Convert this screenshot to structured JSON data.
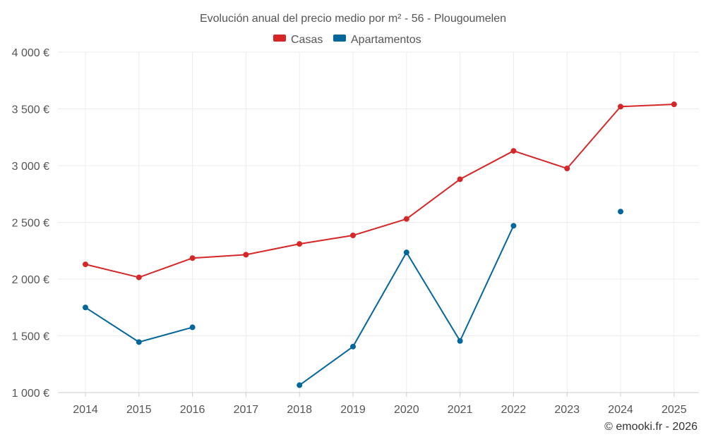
{
  "chart_data": {
    "type": "line",
    "title": "Evolución anual del precio medio por m² - 56 - Plougoumelen",
    "categories": [
      "2014",
      "2015",
      "2016",
      "2017",
      "2018",
      "2019",
      "2020",
      "2021",
      "2022",
      "2023",
      "2024",
      "2025"
    ],
    "y_ticks": [
      1000,
      1500,
      2000,
      2500,
      3000,
      3500,
      4000
    ],
    "y_tick_labels": [
      "1 000 €",
      "1 500 €",
      "2 000 €",
      "2 500 €",
      "3 000 €",
      "3 500 €",
      "4 000 €"
    ],
    "ylim": [
      1000,
      4000
    ],
    "legend_position": "top-center",
    "grid": true,
    "series": [
      {
        "name": "Casas",
        "color": "#d62728",
        "values": [
          2130,
          2015,
          2185,
          2215,
          2310,
          2385,
          2530,
          2880,
          3130,
          2975,
          3520,
          3540
        ]
      },
      {
        "name": "Apartamentos",
        "color": "#04679c",
        "values": [
          1750,
          1445,
          1575,
          null,
          1065,
          1405,
          2235,
          1455,
          2470,
          null,
          2595,
          null
        ]
      }
    ],
    "credit": "© emooki.fr - 2026"
  }
}
